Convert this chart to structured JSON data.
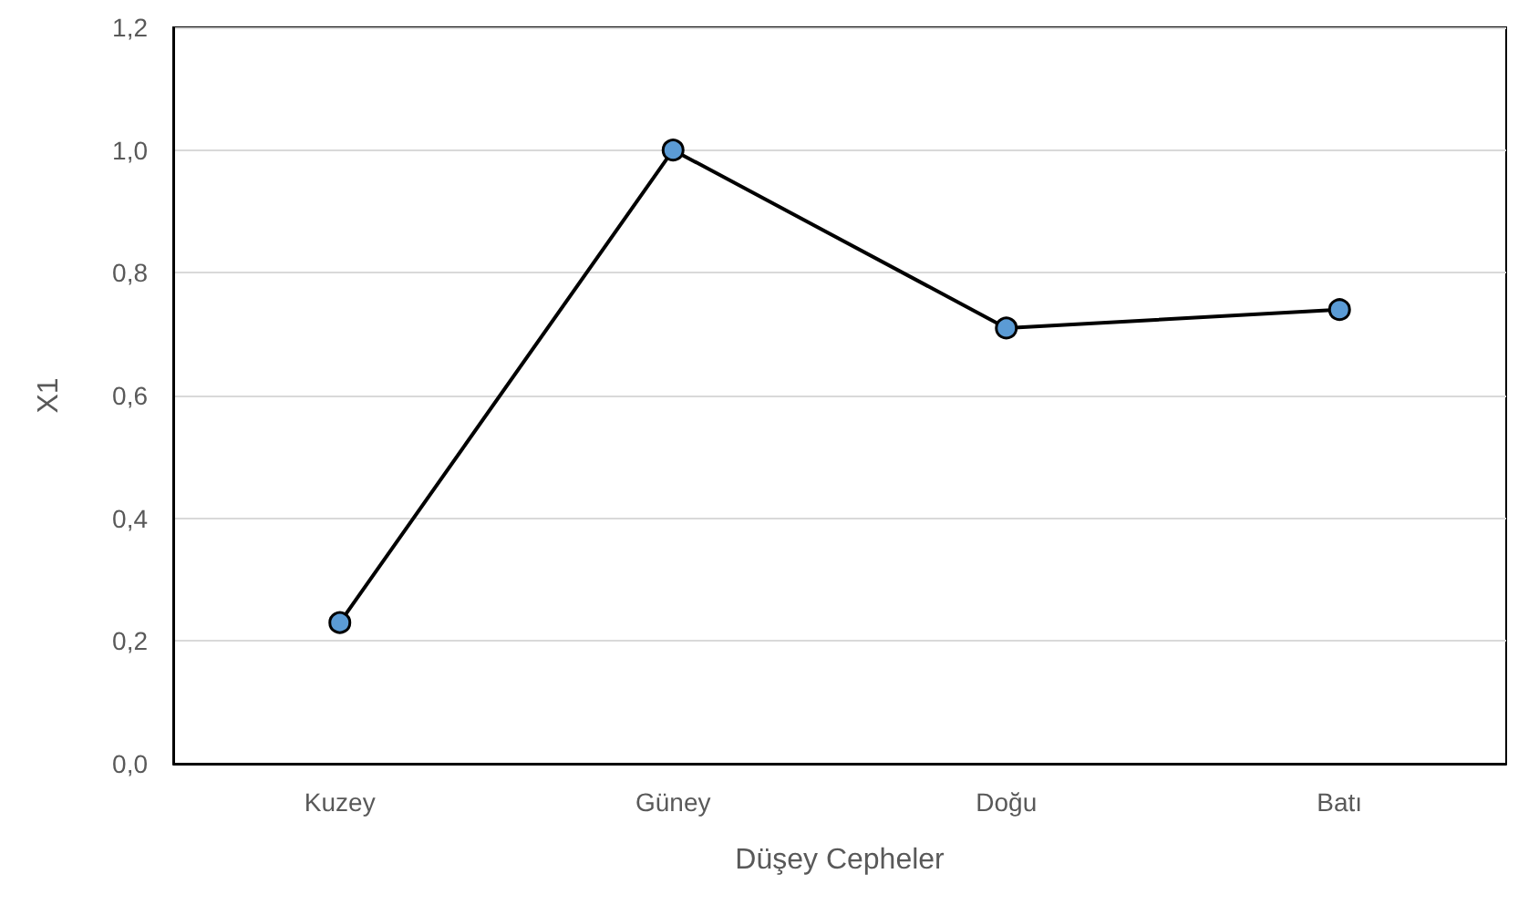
{
  "chart_data": {
    "type": "line",
    "xlabel": "Düşey Cepheler",
    "ylabel": "X1",
    "categories": [
      "Kuzey",
      "Güney",
      "Doğu",
      "Batı"
    ],
    "series": [
      {
        "color": "#5b9bd5",
        "values": [
          0.23,
          1.0,
          0.71,
          0.74
        ]
      }
    ],
    "ylim": [
      0,
      1.2
    ],
    "yticks": [
      {
        "value": 0,
        "label": "0,0"
      },
      {
        "value": 0.2,
        "label": "0,2"
      },
      {
        "value": 0.4,
        "label": "0,4"
      },
      {
        "value": 0.6,
        "label": "0,6"
      },
      {
        "value": 0.8,
        "label": "0,8"
      },
      {
        "value": 1.0,
        "label": "1,0"
      },
      {
        "value": 1.2,
        "label": "1,2"
      }
    ],
    "grid": "y",
    "marker": "circle",
    "line_style": "solid"
  }
}
